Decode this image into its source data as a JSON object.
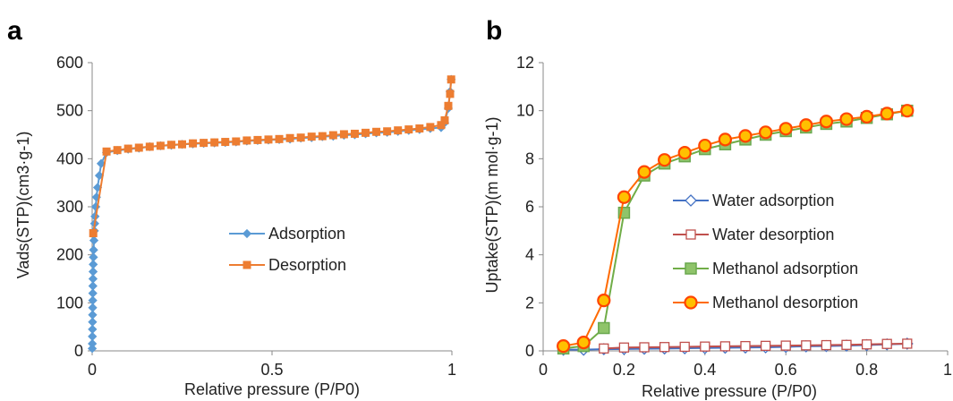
{
  "chart_data": [
    {
      "panel_label": "a",
      "type": "line",
      "xlabel": "Relative pressure (P/P0)",
      "ylabel": "Vads(STP)(cm3·g-1)",
      "xlim": [
        0,
        1
      ],
      "ylim": [
        0,
        600
      ],
      "xticks": [
        0,
        0.5,
        1
      ],
      "xtick_labels": [
        "0",
        "0.5",
        "1"
      ],
      "yticks": [
        0,
        100,
        200,
        300,
        400,
        500,
        600
      ],
      "yticks_labels": [
        "0",
        "100",
        "200",
        "300",
        "400",
        "500",
        "600"
      ],
      "grid": false,
      "legend_position": "center-right",
      "series": [
        {
          "name": "Adsorption",
          "color": "#5b9bd5",
          "marker": "diamond",
          "points": [
            [
              0.0002,
              5
            ],
            [
              0.0004,
              15
            ],
            [
              0.0006,
              30
            ],
            [
              0.0008,
              45
            ],
            [
              0.001,
              60
            ],
            [
              0.0012,
              75
            ],
            [
              0.0014,
              90
            ],
            [
              0.0016,
              105
            ],
            [
              0.0018,
              120
            ],
            [
              0.002,
              135
            ],
            [
              0.0023,
              150
            ],
            [
              0.0026,
              165
            ],
            [
              0.003,
              180
            ],
            [
              0.0035,
              195
            ],
            [
              0.004,
              210
            ],
            [
              0.005,
              230
            ],
            [
              0.006,
              250
            ],
            [
              0.007,
              265
            ],
            [
              0.008,
              280
            ],
            [
              0.01,
              300
            ],
            [
              0.012,
              320
            ],
            [
              0.015,
              340
            ],
            [
              0.02,
              365
            ],
            [
              0.025,
              390
            ],
            [
              0.04,
              413
            ],
            [
              0.07,
              417
            ],
            [
              0.1,
              420
            ],
            [
              0.13,
              422
            ],
            [
              0.16,
              425
            ],
            [
              0.19,
              427
            ],
            [
              0.22,
              428
            ],
            [
              0.25,
              430
            ],
            [
              0.28,
              431
            ],
            [
              0.31,
              432
            ],
            [
              0.34,
              433
            ],
            [
              0.37,
              434
            ],
            [
              0.4,
              435
            ],
            [
              0.43,
              437
            ],
            [
              0.46,
              438
            ],
            [
              0.49,
              439
            ],
            [
              0.52,
              440
            ],
            [
              0.55,
              441
            ],
            [
              0.58,
              443
            ],
            [
              0.61,
              444
            ],
            [
              0.64,
              446
            ],
            [
              0.67,
              447
            ],
            [
              0.7,
              449
            ],
            [
              0.73,
              450
            ],
            [
              0.76,
              452
            ],
            [
              0.79,
              454
            ],
            [
              0.82,
              455
            ],
            [
              0.85,
              457
            ],
            [
              0.88,
              459
            ],
            [
              0.91,
              461
            ],
            [
              0.94,
              463
            ],
            [
              0.97,
              465
            ],
            [
              0.98,
              475
            ],
            [
              0.99,
              505
            ],
            [
              0.995,
              540
            ],
            [
              0.998,
              565
            ]
          ]
        },
        {
          "name": "Desorption",
          "color": "#ed7d31",
          "marker": "square",
          "points": [
            [
              0.998,
              565
            ],
            [
              0.995,
              535
            ],
            [
              0.99,
              510
            ],
            [
              0.98,
              480
            ],
            [
              0.97,
              470
            ],
            [
              0.94,
              466
            ],
            [
              0.91,
              463
            ],
            [
              0.88,
              461
            ],
            [
              0.85,
              459
            ],
            [
              0.82,
              457
            ],
            [
              0.79,
              456
            ],
            [
              0.76,
              454
            ],
            [
              0.73,
              452
            ],
            [
              0.7,
              451
            ],
            [
              0.67,
              449
            ],
            [
              0.64,
              447
            ],
            [
              0.61,
              446
            ],
            [
              0.58,
              444
            ],
            [
              0.55,
              443
            ],
            [
              0.52,
              441
            ],
            [
              0.49,
              440
            ],
            [
              0.46,
              439
            ],
            [
              0.43,
              438
            ],
            [
              0.4,
              436
            ],
            [
              0.37,
              435
            ],
            [
              0.34,
              434
            ],
            [
              0.31,
              433
            ],
            [
              0.28,
              432
            ],
            [
              0.25,
              430
            ],
            [
              0.22,
              429
            ],
            [
              0.19,
              427
            ],
            [
              0.16,
              425
            ],
            [
              0.13,
              423
            ],
            [
              0.1,
              421
            ],
            [
              0.07,
              418
            ],
            [
              0.04,
              415
            ],
            [
              0.003,
              245
            ]
          ]
        }
      ]
    },
    {
      "panel_label": "b",
      "type": "line",
      "xlabel": "Relative pressure (P/P0)",
      "ylabel": "Uptake(STP)(m mol·g-1)",
      "xlim": [
        0,
        1
      ],
      "ylim": [
        0,
        12
      ],
      "xticks": [
        0,
        0.2,
        0.4,
        0.6,
        0.8,
        1
      ],
      "xtick_labels": [
        "0",
        "0.2",
        "0.4",
        "0.6",
        "0.8",
        "1"
      ],
      "yticks": [
        0,
        2,
        4,
        6,
        8,
        10,
        12
      ],
      "yticks_labels": [
        "0",
        "2",
        "4",
        "6",
        "8",
        "10",
        "12"
      ],
      "grid": false,
      "legend_position": "center-right",
      "series": [
        {
          "name": "Water adsorption",
          "color": "#4472c4",
          "marker": "diamond-open",
          "points": [
            [
              0.05,
              0.05
            ],
            [
              0.1,
              0.05
            ],
            [
              0.15,
              0.07
            ],
            [
              0.2,
              0.08
            ],
            [
              0.25,
              0.09
            ],
            [
              0.3,
              0.1
            ],
            [
              0.35,
              0.11
            ],
            [
              0.4,
              0.12
            ],
            [
              0.45,
              0.13
            ],
            [
              0.5,
              0.14
            ],
            [
              0.55,
              0.15
            ],
            [
              0.6,
              0.17
            ],
            [
              0.65,
              0.19
            ],
            [
              0.7,
              0.2
            ],
            [
              0.75,
              0.22
            ],
            [
              0.8,
              0.24
            ],
            [
              0.85,
              0.27
            ],
            [
              0.9,
              0.3
            ]
          ]
        },
        {
          "name": "Water desorption",
          "color": "#c0504d",
          "marker": "square-open",
          "points": [
            [
              0.15,
              0.1
            ],
            [
              0.2,
              0.14
            ],
            [
              0.25,
              0.15
            ],
            [
              0.3,
              0.16
            ],
            [
              0.35,
              0.17
            ],
            [
              0.4,
              0.18
            ],
            [
              0.45,
              0.19
            ],
            [
              0.5,
              0.2
            ],
            [
              0.55,
              0.21
            ],
            [
              0.6,
              0.22
            ],
            [
              0.65,
              0.23
            ],
            [
              0.7,
              0.24
            ],
            [
              0.75,
              0.25
            ],
            [
              0.8,
              0.27
            ],
            [
              0.85,
              0.29
            ],
            [
              0.9,
              0.3
            ]
          ]
        },
        {
          "name": "Methanol adsorption",
          "color": "#70ad47",
          "marker": "square-filled",
          "points": [
            [
              0.05,
              0.1
            ],
            [
              0.1,
              0.2
            ],
            [
              0.15,
              0.95
            ],
            [
              0.2,
              5.75
            ],
            [
              0.25,
              7.3
            ],
            [
              0.3,
              7.8
            ],
            [
              0.35,
              8.1
            ],
            [
              0.4,
              8.4
            ],
            [
              0.45,
              8.6
            ],
            [
              0.5,
              8.8
            ],
            [
              0.55,
              9.0
            ],
            [
              0.6,
              9.15
            ],
            [
              0.65,
              9.3
            ],
            [
              0.7,
              9.45
            ],
            [
              0.75,
              9.55
            ],
            [
              0.8,
              9.7
            ],
            [
              0.85,
              9.85
            ],
            [
              0.9,
              10.0
            ]
          ]
        },
        {
          "name": "Methanol desorption",
          "color": "#ff6a00",
          "marker": "circle-filled",
          "points": [
            [
              0.05,
              0.2
            ],
            [
              0.1,
              0.35
            ],
            [
              0.15,
              2.1
            ],
            [
              0.2,
              6.4
            ],
            [
              0.25,
              7.45
            ],
            [
              0.3,
              7.95
            ],
            [
              0.35,
              8.25
            ],
            [
              0.4,
              8.55
            ],
            [
              0.45,
              8.8
            ],
            [
              0.5,
              8.95
            ],
            [
              0.55,
              9.1
            ],
            [
              0.6,
              9.25
            ],
            [
              0.65,
              9.4
            ],
            [
              0.7,
              9.55
            ],
            [
              0.75,
              9.65
            ],
            [
              0.8,
              9.75
            ],
            [
              0.85,
              9.88
            ],
            [
              0.9,
              10.0
            ]
          ]
        }
      ]
    }
  ]
}
